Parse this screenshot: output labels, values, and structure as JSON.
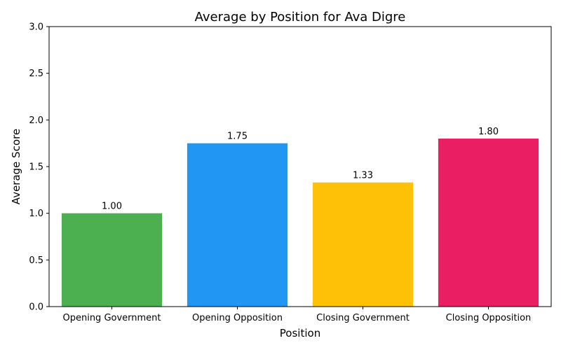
{
  "chart_data": {
    "type": "bar",
    "title": "Average by Position for Ava Digre",
    "xlabel": "Position",
    "ylabel": "Average Score",
    "categories": [
      "Opening Government",
      "Opening Opposition",
      "Closing Government",
      "Closing Opposition"
    ],
    "values": [
      1.0,
      1.75,
      1.33,
      1.8
    ],
    "value_labels": [
      "1.00",
      "1.75",
      "1.33",
      "1.80"
    ],
    "colors": [
      "#4caf50",
      "#2196f3",
      "#ffc107",
      "#e91e63"
    ],
    "ylim": [
      0,
      3
    ],
    "yticks": [
      0.0,
      0.5,
      1.0,
      1.5,
      2.0,
      2.5,
      3.0
    ],
    "ytick_labels": [
      "0.0",
      "0.5",
      "1.0",
      "1.5",
      "2.0",
      "2.5",
      "3.0"
    ],
    "grid": false,
    "legend": "none"
  }
}
